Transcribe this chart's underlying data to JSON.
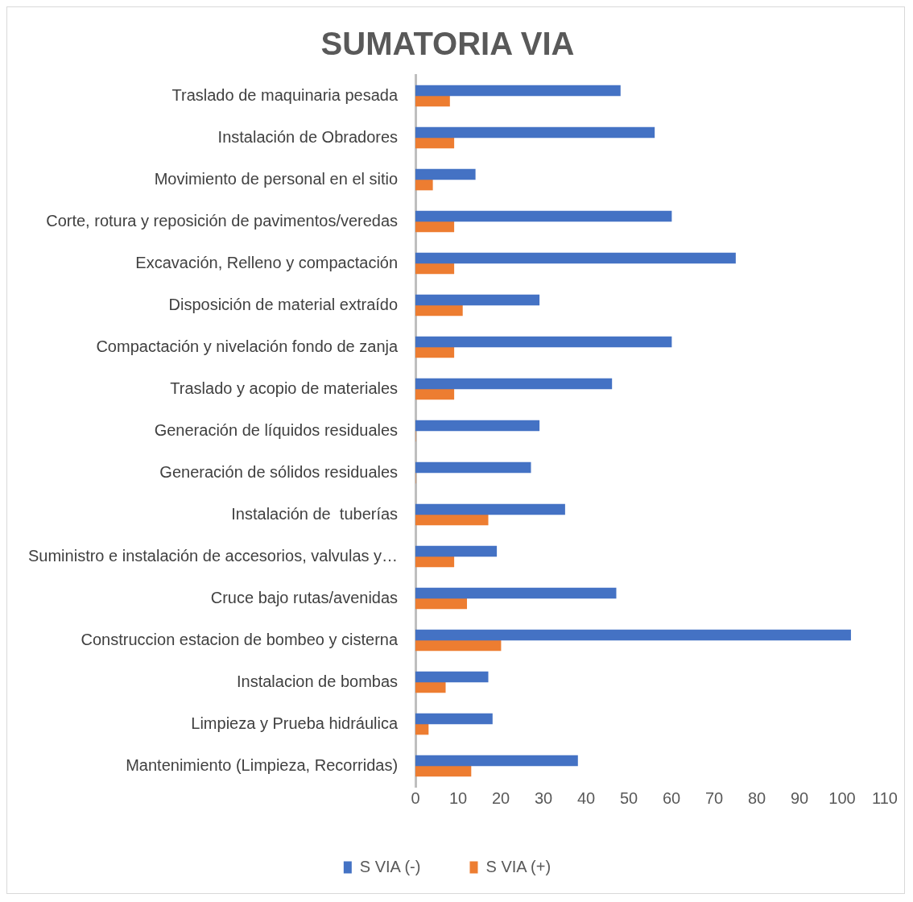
{
  "chart_data": {
    "type": "bar",
    "orientation": "horizontal",
    "title": "SUMATORIA VIA",
    "categories": [
      "Traslado de maquinaria pesada",
      "Instalación de Obradores",
      "Movimiento de personal en el sitio",
      "Corte, rotura y reposición de pavimentos/veredas",
      "Excavación, Relleno y compactación",
      "Disposición de material extraído",
      "Compactación y nivelación fondo de zanja",
      "Traslado y acopio de materiales",
      "Generación de líquidos residuales",
      "Generación de sólidos residuales",
      "Instalación de  tuberías",
      "Suministro e instalación de accesorios, valvulas y…",
      "Cruce bajo rutas/avenidas",
      "Construccion estacion de bombeo y cisterna",
      "Instalacion de bombas",
      "Limpieza y Prueba hidráulica",
      "Mantenimiento (Limpieza, Recorridas)"
    ],
    "series": [
      {
        "name": "S VIA (-)",
        "color": "#4472c4",
        "values": [
          48,
          56,
          14,
          60,
          75,
          29,
          60,
          46,
          29,
          27,
          35,
          19,
          47,
          102,
          17,
          18,
          38
        ]
      },
      {
        "name": "S VIA (+)",
        "color": "#ed7d31",
        "values": [
          8,
          9,
          4,
          9,
          9,
          11,
          9,
          9,
          0,
          0,
          17,
          9,
          12,
          20,
          7,
          3,
          13
        ]
      }
    ],
    "xlim": [
      0,
      110
    ],
    "xticks": [
      0,
      10,
      20,
      30,
      40,
      50,
      60,
      70,
      80,
      90,
      100,
      110
    ],
    "grid": false,
    "legend": "bottom"
  }
}
